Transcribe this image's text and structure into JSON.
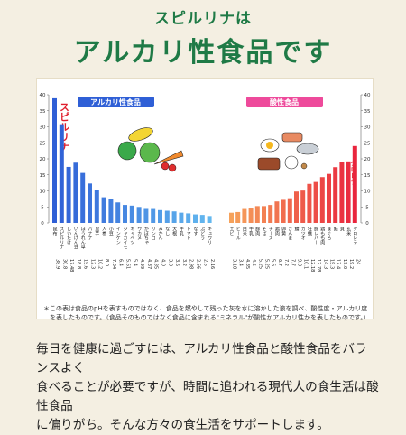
{
  "header": {
    "subtitle": "スピルリナは",
    "title": "アルカリ性食品です"
  },
  "notes": {
    "line1": "＊この表は食品のpHを表すものではなく、食品を燃やして残った灰を水に溶かした液を調べ、酸性度・アルカリ度",
    "line2": "　を表したものです。（食品そのものではなく食品に含まれる\"ミネラル\"が酸性かアルカリ性かを表したものです。）"
  },
  "footer": {
    "line1": "毎日を健康に過ごすには、アルカリ性食品と酸性食品をバランスよく",
    "line2": "食べることが必要ですが、時間に追われる現代人の食生活は酸性食品",
    "line3": "に偏りがち。そんな方々の食生活をサポートします。"
  },
  "colors": {
    "alkaline": "#2f5fd6",
    "alkaline_light": "#63b8ef",
    "acid": "#e9253d",
    "acid_light": "#f6a25b",
    "title_green": "#1f7a46"
  },
  "chart_data": {
    "type": "bar",
    "ylim": [
      0,
      40
    ],
    "yticks": [
      0,
      5,
      10,
      15,
      20,
      25,
      30,
      35,
      40
    ],
    "grid": false,
    "legend_alkaline": "アルカリ性食品",
    "legend_acid": "酸性食品",
    "highlight_alkaline": "スピルリナ",
    "highlight_acid": "クロレラ",
    "alkaline": {
      "categories": [
        "昆布",
        "スピルリナ",
        "しいたけ",
        "いんげん豆",
        "ほうれん草",
        "バナナ",
        "里芋",
        "人参",
        "小豆",
        "インゲン",
        "ジャガイモ",
        "キャベツ",
        "ワカメ",
        "かぼちゃ",
        "リンゴ",
        "みかん",
        "なし",
        "大根",
        "牛乳",
        "トマト",
        "なす",
        "ぶどう",
        "キュウリ"
      ],
      "values": [
        38.9,
        30.8,
        17.48,
        18.8,
        15.6,
        12.3,
        10.2,
        8.0,
        7.34,
        6.4,
        5.61,
        5.4,
        4.99,
        4.37,
        4.35,
        4.0,
        3.8,
        3.6,
        3.2,
        2.98,
        2.66,
        2.5,
        2.16
      ]
    },
    "acid": {
      "categories": [
        "エビ",
        "ビール",
        "白米",
        "牛乳",
        "豚肉",
        "そば",
        "チーズ",
        "鶏肉",
        "卵黄",
        "さんま",
        "鯖",
        "カツオ",
        "牡蠣",
        "豚レバー",
        "鶏もも肉",
        "まぐろ",
        "鮭",
        "貝",
        "玄米",
        "クロレラ"
      ],
      "values": [
        3.18,
        3.4,
        4.35,
        4.5,
        5.25,
        5.25,
        5.6,
        6.7,
        7.2,
        7.7,
        9.8,
        10.1,
        12.18,
        12.78,
        14.3,
        15.3,
        17.4,
        19.0,
        19.2,
        24.0
      ]
    },
    "value_labels_alkaline": [
      "38.9",
      "30.8",
      "17.48",
      "18.8",
      "15.6",
      "12.3",
      "10.2",
      "8.0",
      "7.34",
      "6.4",
      "5.61",
      "5.4",
      "4.99",
      "4.37",
      "4.35",
      "4.0",
      "3.8",
      "3.6",
      "3.2",
      "2.98",
      "2.66",
      "2.5",
      "2.16"
    ],
    "value_labels_acid": [
      "3.18",
      "3.4",
      "4.35",
      "4.5",
      "5.25",
      "5.25",
      "5.6",
      "6.7",
      "7.2",
      "7.7",
      "9.8",
      "10.1",
      "12.18",
      "12.78",
      "14.3",
      "15.3",
      "17.4",
      "19.0",
      "19.2",
      "24"
    ]
  }
}
